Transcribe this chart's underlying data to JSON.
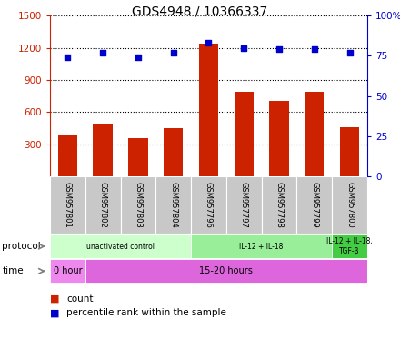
{
  "title": "GDS4948 / 10366337",
  "samples": [
    "GSM957801",
    "GSM957802",
    "GSM957803",
    "GSM957804",
    "GSM957796",
    "GSM957797",
    "GSM957798",
    "GSM957799",
    "GSM957800"
  ],
  "counts": [
    390,
    490,
    360,
    450,
    1240,
    790,
    700,
    790,
    460
  ],
  "percentile_ranks": [
    74,
    77,
    74,
    77,
    83,
    80,
    79,
    79,
    77
  ],
  "ylim_left": [
    0,
    1500
  ],
  "ylim_right": [
    0,
    100
  ],
  "yticks_left": [
    300,
    600,
    900,
    1200,
    1500
  ],
  "yticks_right": [
    0,
    25,
    50,
    75,
    100
  ],
  "bar_color": "#cc2200",
  "dot_color": "#0000cc",
  "bg_color": "#ffffff",
  "protocol_groups": [
    {
      "label": "unactivated control",
      "start": 0,
      "end": 3,
      "color": "#ccffcc"
    },
    {
      "label": "IL-12 + IL-18",
      "start": 4,
      "end": 7,
      "color": "#99ee99"
    },
    {
      "label": "IL-12 + IL-18,\nTGF-β",
      "start": 8,
      "end": 8,
      "color": "#44cc44"
    }
  ],
  "time_groups": [
    {
      "label": "0 hour",
      "start": 0,
      "end": 0,
      "color": "#ee88ee"
    },
    {
      "label": "15-20 hours",
      "start": 1,
      "end": 8,
      "color": "#dd66dd"
    }
  ],
  "protocol_label": "protocol",
  "time_label": "time",
  "legend_count": "count",
  "legend_pct": "percentile rank within the sample"
}
